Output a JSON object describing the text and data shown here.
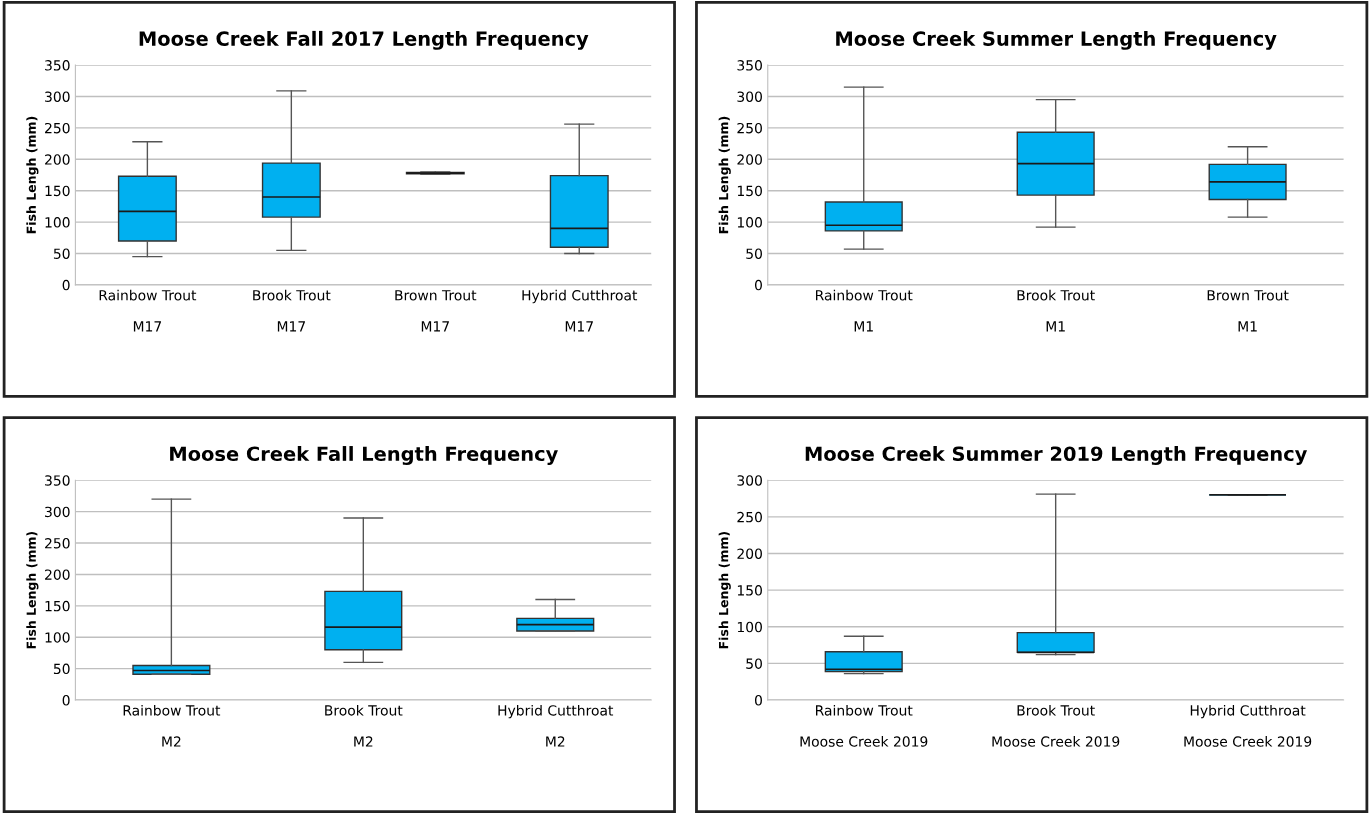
{
  "chart_data": [
    {
      "type": "box",
      "title": "Moose Creek Fall 2017 Length Frequency",
      "ylabel": "Fish Lengh (mm)",
      "categories": [
        "Rainbow Trout\n\nM17",
        "Brook Trout\n\nM17",
        "Brown Trout\n\nM17",
        "Hybrid Cutthroat\n\nM17"
      ],
      "color": "#00b0f0",
      "ylim": [
        0,
        350
      ],
      "yticks": [
        0,
        50,
        100,
        150,
        200,
        250,
        300,
        350
      ],
      "grid": "y",
      "boxes": [
        {
          "low": 45,
          "q1": 70,
          "median": 117,
          "q3": 173,
          "high": 228
        },
        {
          "low": 55,
          "q1": 108,
          "median": 140,
          "q3": 194,
          "high": 309
        },
        {
          "low": 176,
          "q1": 177,
          "median": 178,
          "q3": 179,
          "high": 180
        },
        {
          "low": 50,
          "q1": 60,
          "median": 90,
          "q3": 174,
          "high": 256
        }
      ]
    },
    {
      "type": "box",
      "title": "Moose Creek Summer Length Frequency",
      "ylabel": "Fish Lengh (mm)",
      "categories": [
        "Rainbow Trout\n\nM1",
        "Brook Trout\n\nM1",
        "Brown Trout\n\nM1"
      ],
      "color": "#00b0f0",
      "ylim": [
        0,
        350
      ],
      "yticks": [
        0,
        50,
        100,
        150,
        200,
        250,
        300,
        350
      ],
      "grid": "y",
      "boxes": [
        {
          "low": 57,
          "q1": 86,
          "median": 95,
          "q3": 132,
          "high": 315
        },
        {
          "low": 92,
          "q1": 143,
          "median": 193,
          "q3": 243,
          "high": 295
        },
        {
          "low": 108,
          "q1": 136,
          "median": 164,
          "q3": 192,
          "high": 220
        }
      ]
    },
    {
      "type": "box",
      "title": "Moose Creek Fall Length Frequency",
      "ylabel": "Fish Lengh (mm)",
      "categories": [
        "Rainbow Trout\n\nM2",
        "Brook Trout\n\nM2",
        "Hybrid Cutthroat\n\nM2"
      ],
      "color": "#00b0f0",
      "ylim": [
        0,
        350
      ],
      "yticks": [
        0,
        50,
        100,
        150,
        200,
        250,
        300,
        350
      ],
      "grid": "y",
      "boxes": [
        {
          "low": 41,
          "q1": 41,
          "median": 47,
          "q3": 55,
          "high": 320
        },
        {
          "low": 60,
          "q1": 80,
          "median": 116,
          "q3": 173,
          "high": 290
        },
        {
          "low": 110,
          "q1": 110,
          "median": 120,
          "q3": 130,
          "high": 160
        }
      ]
    },
    {
      "type": "box",
      "title": "Moose Creek Summer 2019 Length Frequency",
      "ylabel": "Fish Lengh (mm)",
      "categories": [
        "Rainbow Trout\n\nMoose Creek 2019",
        "Brook Trout\n\nMoose Creek 2019",
        "Hybrid Cutthroat\n\nMoose Creek 2019"
      ],
      "color": "#00b0f0",
      "ylim": [
        0,
        300
      ],
      "yticks": [
        0,
        50,
        100,
        150,
        200,
        250,
        300
      ],
      "grid": "y",
      "boxes": [
        {
          "low": 36,
          "q1": 39,
          "median": 42,
          "q3": 66,
          "high": 87
        },
        {
          "low": 62,
          "q1": 65,
          "median": 65,
          "q3": 92,
          "high": 281
        },
        {
          "low": 280,
          "q1": 280,
          "median": 280,
          "q3": 280,
          "high": 280
        }
      ]
    }
  ]
}
